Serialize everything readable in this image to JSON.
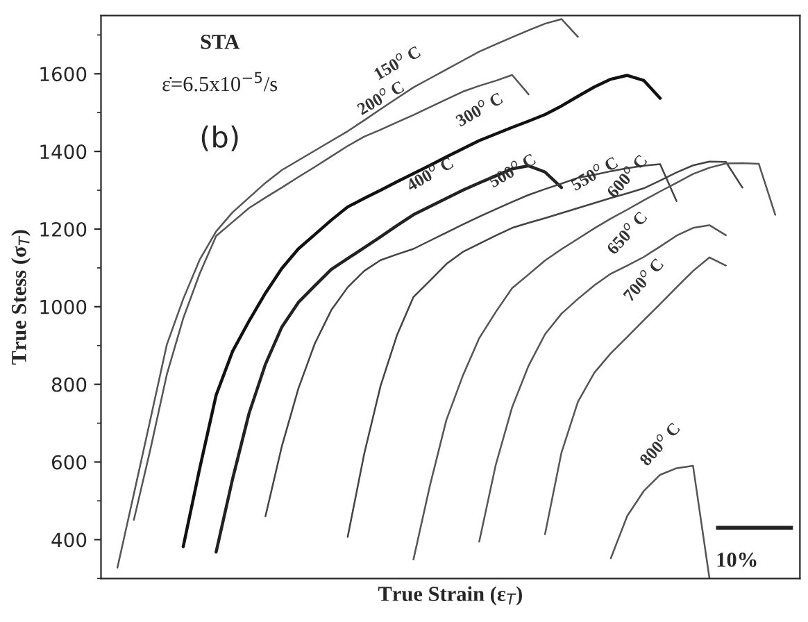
{
  "chart_data": {
    "type": "line",
    "xlabel": "True Strain (ε$_{T}$)",
    "ylabel": "True Stess (σ$_{T}$)",
    "categories": [
      null,
      null,
      null,
      null,
      null,
      null,
      null,
      null,
      null,
      null,
      null,
      null,
      null,
      null,
      null,
      null,
      null,
      null,
      null,
      null,
      null,
      null,
      null,
      null,
      null,
      null,
      null,
      null,
      null,
      null,
      null,
      null,
      null,
      null,
      null,
      null,
      null,
      null,
      null,
      null,
      null,
      null,
      null
    ],
    "ylim": [
      300,
      1750
    ],
    "yticks": [
      400,
      600,
      800,
      1000,
      1200,
      1400,
      1600
    ],
    "tick_labels": "y",
    "annotations": [
      "STA",
      "ε̇=6.5x10$^{−5}$/s",
      "(b)",
      "10%"
    ],
    "series": [
      {
        "name": "150$^{o}$ C",
        "color": "#555555",
        "values": [
          null,
          328,
          518,
          709,
          902,
          1020,
          1121,
          1194,
          1243,
          1281,
          1319,
          1352,
          1377,
          1402,
          1427,
          1452,
          1480,
          1509,
          1537,
          1565,
          1588,
          1611,
          1634,
          1657,
          1676,
          1694,
          1712,
          1729,
          1741,
          1695,
          null,
          null,
          null,
          null,
          null,
          null,
          null,
          null,
          null,
          null,
          null,
          null,
          null
        ]
      },
      {
        "name": "200$^{o}$ C",
        "color": "#555555",
        "values": [
          null,
          null,
          451,
          632,
          825,
          970,
          1085,
          1182,
          1218,
          1254,
          1281,
          1307,
          1334,
          1360,
          1387,
          1414,
          1438,
          1456,
          1475,
          1494,
          1514,
          1534,
          1554,
          1569,
          1582,
          1597,
          1547,
          null,
          null,
          null,
          null,
          null,
          null,
          null,
          null,
          null,
          null,
          null,
          null,
          null,
          null,
          null,
          null
        ]
      },
      {
        "name": "300$^{o}$ C",
        "color": "#111111",
        "values": [
          null,
          null,
          null,
          null,
          null,
          382,
          583,
          772,
          885,
          963,
          1035,
          1099,
          1149,
          1186,
          1223,
          1257,
          1279,
          1300,
          1322,
          1343,
          1364,
          1386,
          1407,
          1428,
          1445,
          1462,
          1478,
          1495,
          1517,
          1542,
          1566,
          1586,
          1596,
          1583,
          1537,
          null,
          null,
          null,
          null,
          null,
          null,
          null,
          null
        ]
      },
      {
        "name": "400$^{o}$ C",
        "color": "#222222",
        "values": [
          null,
          null,
          null,
          null,
          null,
          null,
          null,
          368,
          556,
          725,
          852,
          948,
          1011,
          1054,
          1096,
          1124,
          1152,
          1180,
          1209,
          1237,
          1258,
          1279,
          1300,
          1319,
          1337,
          1355,
          1363,
          1347,
          1307,
          null,
          null,
          null,
          null,
          null,
          null,
          null,
          null,
          null,
          null,
          null,
          null,
          null,
          null
        ]
      },
      {
        "name": "500$^{o}$ C",
        "color": "#444444",
        "values": [
          null,
          null,
          null,
          null,
          null,
          null,
          null,
          null,
          null,
          null,
          460,
          641,
          789,
          905,
          991,
          1050,
          1092,
          1120,
          1135,
          1149,
          1170,
          1191,
          1212,
          1232,
          1251,
          1270,
          1288,
          1303,
          1317,
          1332,
          1340,
          1349,
          1357,
          1363,
          1367,
          1272,
          null,
          null,
          null,
          null,
          null,
          null,
          null
        ]
      },
      {
        "name": "550$^{o}$ C",
        "color": "#444444",
        "values": [
          null,
          null,
          null,
          null,
          null,
          null,
          null,
          null,
          null,
          null,
          null,
          null,
          null,
          null,
          null,
          407,
          620,
          796,
          927,
          1025,
          1067,
          1110,
          1141,
          1162,
          1183,
          1203,
          1216,
          1228,
          1241,
          1254,
          1267,
          1280,
          1292,
          1305,
          1325,
          1346,
          1364,
          1374,
          1373,
          1307,
          null,
          null,
          null
        ]
      },
      {
        "name": "600$^{o}$ C",
        "color": "#555555",
        "values": [
          null,
          null,
          null,
          null,
          null,
          null,
          null,
          null,
          null,
          null,
          null,
          null,
          null,
          null,
          null,
          null,
          null,
          null,
          null,
          349,
          539,
          708,
          822,
          919,
          986,
          1048,
          1083,
          1119,
          1148,
          1175,
          1202,
          1227,
          1250,
          1274,
          1297,
          1319,
          1342,
          1358,
          1369,
          1370,
          1368,
          1237,
          null
        ]
      },
      {
        "name": "650$^{o}$ C",
        "color": "#555555",
        "values": [
          null,
          null,
          null,
          null,
          null,
          null,
          null,
          null,
          null,
          null,
          null,
          null,
          null,
          null,
          null,
          null,
          null,
          null,
          null,
          null,
          null,
          null,
          null,
          395,
          592,
          741,
          848,
          929,
          982,
          1020,
          1055,
          1085,
          1106,
          1128,
          1155,
          1183,
          1203,
          1210,
          1184,
          null,
          null,
          null,
          null
        ]
      },
      {
        "name": "700$^{o}$ C",
        "color": "#555555",
        "values": [
          null,
          null,
          null,
          null,
          null,
          null,
          null,
          null,
          null,
          null,
          null,
          null,
          null,
          null,
          null,
          null,
          null,
          null,
          null,
          null,
          null,
          null,
          null,
          null,
          null,
          null,
          null,
          414,
          624,
          755,
          830,
          880,
          922,
          965,
          1007,
          1050,
          1092,
          1127,
          1106,
          null,
          null,
          null,
          null
        ]
      },
      {
        "name": "800$^{o}$ C",
        "color": "#555555",
        "values": [
          null,
          null,
          null,
          null,
          null,
          null,
          null,
          null,
          null,
          null,
          null,
          null,
          null,
          null,
          null,
          null,
          null,
          null,
          null,
          null,
          null,
          null,
          null,
          null,
          null,
          null,
          null,
          null,
          null,
          null,
          null,
          352,
          461,
          525,
          567,
          584,
          590,
          300,
          null,
          null,
          null,
          null,
          null
        ]
      }
    ]
  }
}
